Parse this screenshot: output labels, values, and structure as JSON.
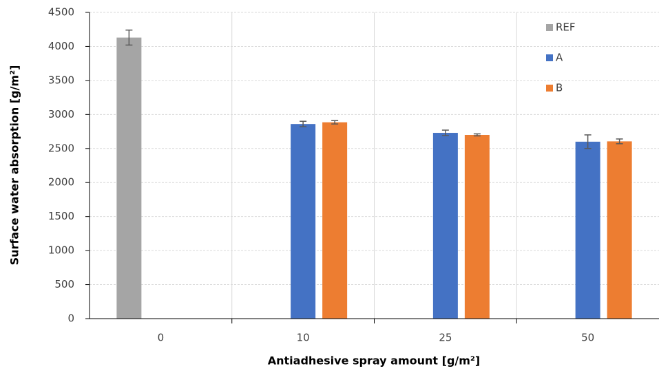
{
  "chart_data": {
    "type": "bar",
    "x_label": "Antiadhesive spray amount  [g/m²]",
    "y_label": "Surface water absorption  [g/m²]",
    "categories": [
      "0",
      "10",
      "25",
      "50"
    ],
    "series": [
      {
        "name": "REF",
        "color": "#a5a5a5",
        "values": [
          4130,
          null,
          null,
          null
        ],
        "errors": [
          110,
          null,
          null,
          null
        ]
      },
      {
        "name": "A",
        "color": "#4472c4",
        "values": [
          null,
          2860,
          2730,
          2600
        ],
        "errors": [
          null,
          40,
          40,
          100
        ]
      },
      {
        "name": "B",
        "color": "#ed7d31",
        "values": [
          null,
          2885,
          2700,
          2605
        ],
        "errors": [
          null,
          25,
          15,
          35
        ]
      }
    ],
    "ylim": [
      0,
      4500
    ],
    "yticks": [
      0,
      500,
      1000,
      1500,
      2000,
      2500,
      3000,
      3500,
      4000,
      4500
    ],
    "grid": true,
    "legend": "top-right"
  }
}
